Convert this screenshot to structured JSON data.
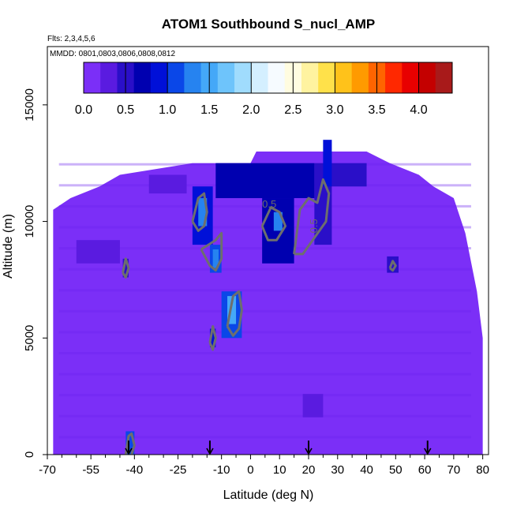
{
  "chart_data": {
    "type": "heatmap",
    "title": "ATOM1 Southbound S_nucl_AMP",
    "flights_note": "Flts: 2,3,4,5,6",
    "dates_note": "MMDD: 0801,0803,0806,0808,0812",
    "xlabel": "Latitude (deg N)",
    "ylabel": "Altitude (m)",
    "xlim": [
      -70,
      82
    ],
    "ylim": [
      0,
      17500
    ],
    "x_ticks": [
      -70,
      -55,
      -40,
      -25,
      -10,
      0,
      10,
      20,
      30,
      40,
      50,
      60,
      70,
      80
    ],
    "y_ticks": [
      0,
      5000,
      10000,
      15000
    ],
    "colorbar": {
      "range": [
        0.0,
        4.4
      ],
      "ticks": [
        "0.0",
        "0.5",
        "1.0",
        "1.5",
        "2.0",
        "2.5",
        "3.0",
        "3.5",
        "4.0"
      ],
      "colors": [
        "#7b2ff7",
        "#5a1be0",
        "#2a0fc8",
        "#0000b0",
        "#0010d8",
        "#0a47e8",
        "#2683f0",
        "#44a8f8",
        "#6ec4fb",
        "#a0dcfd",
        "#d4efff",
        "#f6fbff",
        "#fffce0",
        "#fff3a0",
        "#ffe14a",
        "#ffc21a",
        "#ff9a00",
        "#ff6400",
        "#ff2800",
        "#e80000",
        "#c40000",
        "#a81a1a"
      ]
    },
    "contour_labels": [
      "0.5",
      "0.5"
    ],
    "flight_markers_lat": [
      -42,
      -14,
      20,
      61
    ],
    "envelope": [
      {
        "x": -68,
        "alt": 10500
      },
      {
        "x": -62,
        "alt": 11000
      },
      {
        "x": -52,
        "alt": 11500
      },
      {
        "x": -45,
        "alt": 12000
      },
      {
        "x": -20,
        "alt": 12500
      },
      {
        "x": 0,
        "alt": 12500
      },
      {
        "x": 2,
        "alt": 13000
      },
      {
        "x": 40,
        "alt": 13000
      },
      {
        "x": 48,
        "alt": 12500
      },
      {
        "x": 58,
        "alt": 12000
      },
      {
        "x": 63,
        "alt": 11500
      },
      {
        "x": 70,
        "alt": 11000
      },
      {
        "x": 74,
        "alt": 9500
      },
      {
        "x": 78,
        "alt": 7000
      },
      {
        "x": 80,
        "alt": 5000
      }
    ],
    "cells": [
      {
        "x": [
          -20,
          -13
        ],
        "alt": [
          9000,
          11500
        ],
        "v": 0.9
      },
      {
        "x": [
          -18,
          -15
        ],
        "alt": [
          9800,
          11000
        ],
        "v": 1.3
      },
      {
        "x": [
          -14,
          -10
        ],
        "alt": [
          7800,
          9000
        ],
        "v": 1.0
      },
      {
        "x": [
          -13,
          -11
        ],
        "alt": [
          8000,
          8800
        ],
        "v": 1.4
      },
      {
        "x": [
          -10,
          -3
        ],
        "alt": [
          5000,
          7000
        ],
        "v": 1.0
      },
      {
        "x": [
          -8,
          -5
        ],
        "alt": [
          5600,
          6800
        ],
        "v": 1.5
      },
      {
        "x": [
          -14,
          -12
        ],
        "alt": [
          4600,
          5400
        ],
        "v": 0.8
      },
      {
        "x": [
          4,
          15
        ],
        "alt": [
          8200,
          11000
        ],
        "v": 0.7
      },
      {
        "x": [
          8,
          11
        ],
        "alt": [
          9600,
          10400
        ],
        "v": 1.3
      },
      {
        "x": [
          22,
          28
        ],
        "alt": [
          9000,
          12500
        ],
        "v": 0.55
      },
      {
        "x": [
          25,
          28
        ],
        "alt": [
          11500,
          13500
        ],
        "v": 0.9
      },
      {
        "x": [
          -12,
          22
        ],
        "alt": [
          11000,
          12500
        ],
        "v": 0.6
      },
      {
        "x": [
          28,
          40
        ],
        "alt": [
          11500,
          12500
        ],
        "v": 0.55
      },
      {
        "x": [
          -43,
          -40
        ],
        "alt": [
          0,
          1000
        ],
        "v": 1.1
      },
      {
        "x": [
          47,
          51
        ],
        "alt": [
          7800,
          8500
        ],
        "v": 0.55
      },
      {
        "x": [
          -44,
          -42
        ],
        "alt": [
          7600,
          8400
        ],
        "v": 0.5
      },
      {
        "x": [
          18,
          25
        ],
        "alt": [
          1600,
          2600
        ],
        "v": 0.35
      },
      {
        "x": [
          -60,
          -45
        ],
        "alt": [
          8200,
          9200
        ],
        "v": 0.3
      },
      {
        "x": [
          -35,
          -22
        ],
        "alt": [
          11200,
          12000
        ],
        "v": 0.35
      }
    ],
    "contours": [
      [
        [
          -20,
          10000
        ],
        [
          -18,
          11000
        ],
        [
          -16,
          11200
        ],
        [
          -15,
          10400
        ],
        [
          -16,
          9800
        ],
        [
          -18,
          9600
        ],
        [
          -20,
          10000
        ]
      ],
      [
        [
          -17,
          8800
        ],
        [
          -12,
          9200
        ],
        [
          -10,
          9500
        ],
        [
          -10,
          8400
        ],
        [
          -12,
          7900
        ],
        [
          -14,
          8100
        ],
        [
          -17,
          8800
        ]
      ],
      [
        [
          -8,
          5500
        ],
        [
          -6,
          6800
        ],
        [
          -4,
          7000
        ],
        [
          -3,
          6200
        ],
        [
          -4,
          5400
        ],
        [
          -6,
          5100
        ],
        [
          -8,
          5500
        ]
      ],
      [
        [
          -14,
          4800
        ],
        [
          -13,
          5500
        ],
        [
          -12,
          5000
        ],
        [
          -13,
          4500
        ],
        [
          -14,
          4800
        ]
      ],
      [
        [
          4,
          9800
        ],
        [
          7,
          10600
        ],
        [
          10,
          10400
        ],
        [
          12,
          9800
        ],
        [
          9,
          9200
        ],
        [
          6,
          9200
        ],
        [
          4,
          9800
        ]
      ],
      [
        [
          15,
          8600
        ],
        [
          17,
          10500
        ],
        [
          20,
          11000
        ],
        [
          23,
          10800
        ],
        [
          25,
          11800
        ],
        [
          27,
          11200
        ],
        [
          26,
          10000
        ],
        [
          22,
          9300
        ],
        [
          18,
          8600
        ],
        [
          15,
          8600
        ]
      ],
      [
        [
          -43,
          0
        ],
        [
          -42,
          800
        ],
        [
          -41,
          900
        ],
        [
          -40,
          400
        ],
        [
          -41,
          0
        ]
      ],
      [
        [
          -44,
          7800
        ],
        [
          -43,
          8400
        ],
        [
          -42,
          8000
        ],
        [
          -43,
          7600
        ],
        [
          -44,
          7800
        ]
      ],
      [
        [
          48,
          8000
        ],
        [
          49,
          8300
        ],
        [
          50,
          8100
        ],
        [
          49,
          7900
        ],
        [
          48,
          8000
        ]
      ]
    ]
  }
}
